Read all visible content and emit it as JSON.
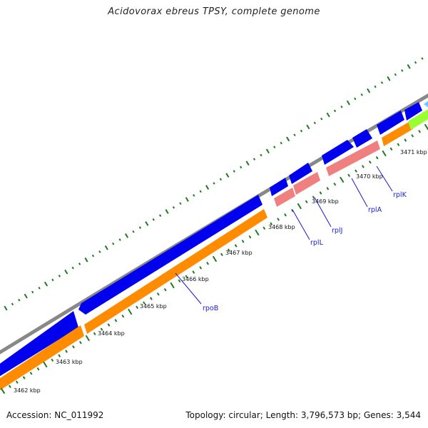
{
  "title": "Acidovorax ebreus TPSY, complete genome",
  "footer": {
    "accession": "Accession: NC_011992",
    "summary": "Topology: circular; Length: 3,796,573 bp; Genes: 3,544"
  },
  "colors": {
    "backbone": "#888888",
    "gene_blue": "#0000ee",
    "cds_orange": "#ff8c00",
    "rna_pink": "#f08080",
    "green_feature": "#99ff33",
    "cyan_feature": "#66ccff",
    "tick_green": "#1e7a1e",
    "label_blue": "#1a1acc"
  },
  "kbp_labels": [
    "3462 kbp",
    "3463 kbp",
    "3464 kbp",
    "3465 kbp",
    "3466 kbp",
    "3467 kbp",
    "3468 kbp",
    "3469 kbp",
    "3470 kbp",
    "3471 kbp"
  ],
  "gene_labels": [
    "rpoB",
    "rplL",
    "rplJ",
    "rplA",
    "rplK"
  ]
}
